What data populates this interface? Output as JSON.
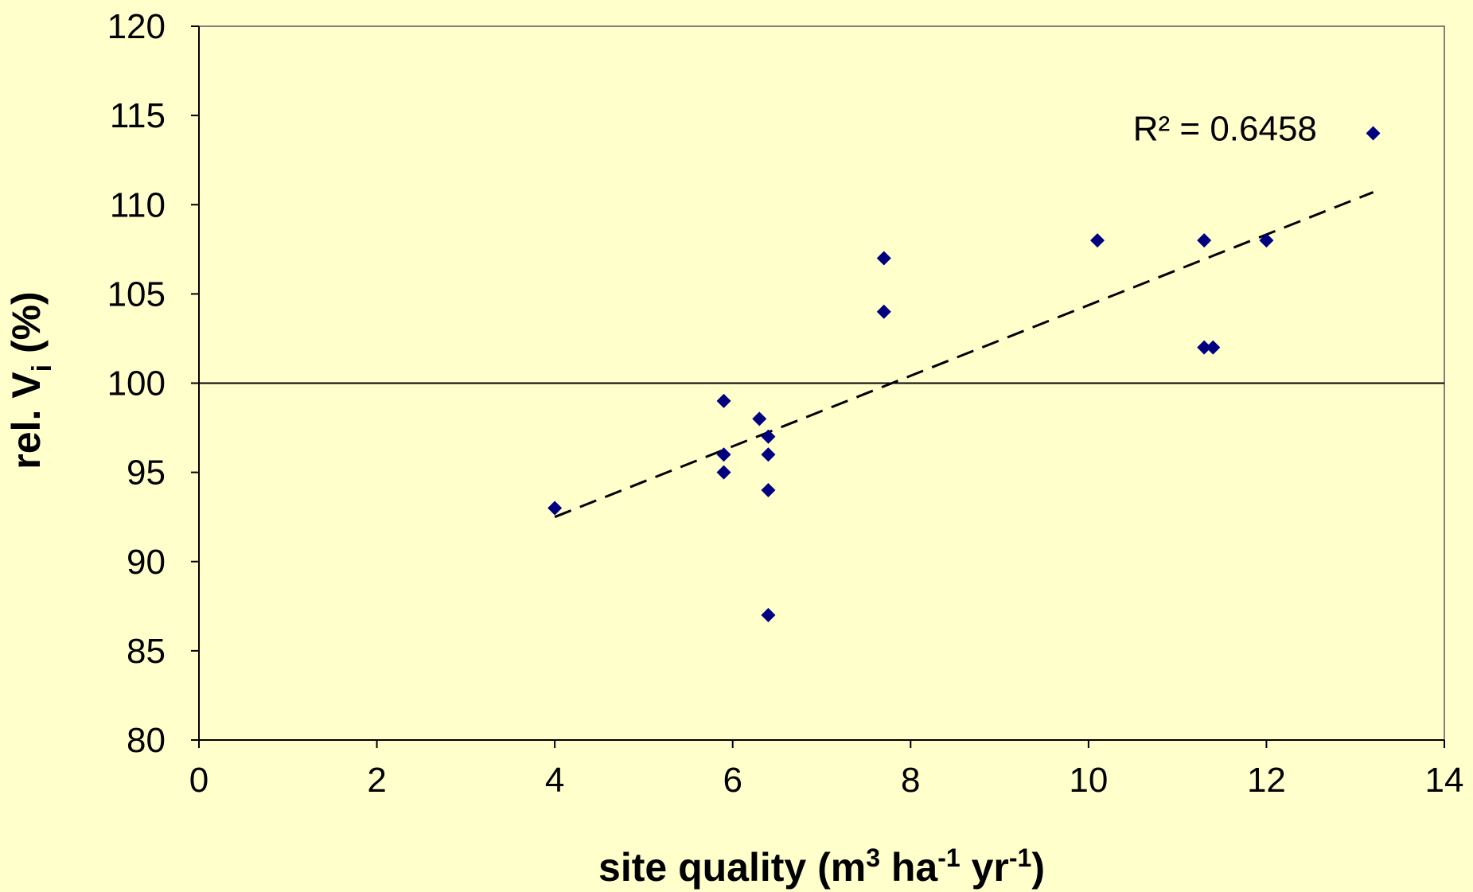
{
  "chart_data": {
    "type": "scatter",
    "title": "",
    "xlabel": {
      "parts": [
        "site quality (m",
        "3",
        " ha",
        "-1",
        " yr",
        "-1",
        ")"
      ]
    },
    "ylabel": {
      "parts": [
        "rel. V",
        "i",
        " (%)"
      ]
    },
    "xlim": [
      0,
      14
    ],
    "ylim": [
      80,
      120
    ],
    "x_ticks": [
      0,
      2,
      4,
      6,
      8,
      10,
      12,
      14
    ],
    "y_ticks": [
      80,
      85,
      90,
      95,
      100,
      105,
      110,
      115,
      120
    ],
    "x_tick_labels": [
      "0",
      "2",
      "4",
      "6",
      "8",
      "10",
      "12",
      "14"
    ],
    "y_tick_labels": [
      "80",
      "85",
      "90",
      "95",
      "100",
      "105",
      "110",
      "115",
      "120"
    ],
    "series": [
      {
        "marker": "diamond",
        "color": "#000080",
        "points": [
          {
            "x": 4.0,
            "y": 93
          },
          {
            "x": 5.9,
            "y": 99
          },
          {
            "x": 5.9,
            "y": 96
          },
          {
            "x": 5.9,
            "y": 95
          },
          {
            "x": 6.3,
            "y": 98
          },
          {
            "x": 6.4,
            "y": 97
          },
          {
            "x": 6.4,
            "y": 96
          },
          {
            "x": 6.4,
            "y": 94
          },
          {
            "x": 6.4,
            "y": 87
          },
          {
            "x": 7.7,
            "y": 107
          },
          {
            "x": 7.7,
            "y": 104
          },
          {
            "x": 10.1,
            "y": 108
          },
          {
            "x": 11.3,
            "y": 108
          },
          {
            "x": 11.3,
            "y": 102
          },
          {
            "x": 11.4,
            "y": 102
          },
          {
            "x": 12.0,
            "y": 108
          },
          {
            "x": 13.2,
            "y": 114
          }
        ]
      }
    ],
    "trendline": {
      "style": "dashed",
      "color": "#000000",
      "x_start": 4.0,
      "y_start": 92.5,
      "x_end": 13.2,
      "y_end": 110.7
    },
    "reference_line": {
      "y": 100,
      "color": "#000000"
    },
    "annotation": {
      "text": "R² = 0.6458",
      "x": 10.5,
      "y": 113.6
    },
    "grid": false,
    "legend": "none",
    "colors": {
      "background": "#FFFFCC",
      "plot_border": "#808080",
      "axis": "#000000"
    }
  }
}
